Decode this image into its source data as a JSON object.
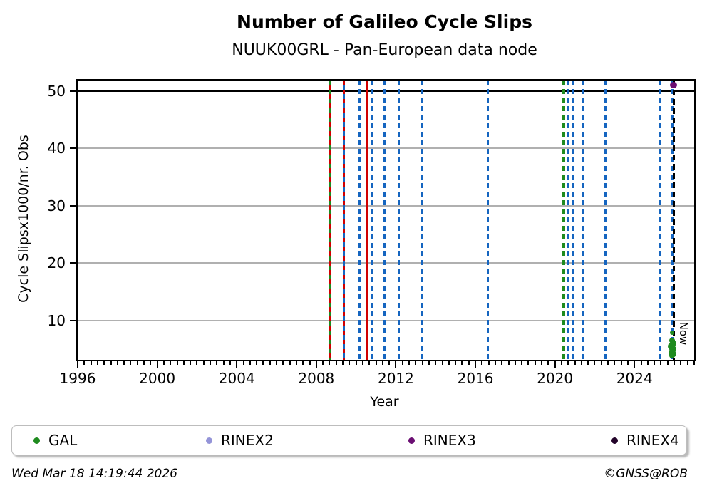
{
  "title": "Number of Galileo Cycle Slips",
  "subtitle": "NUUK00GRL - Pan-European data node",
  "footer": {
    "timestamp": "Wed Mar 18 14:19:44 2026",
    "credit": "©GNSS@ROB"
  },
  "chart_data": {
    "type": "scatter",
    "title": "Number of Galileo Cycle Slips",
    "subtitle": "NUUK00GRL - Pan-European data node",
    "xlabel": "Year",
    "ylabel": "Cycle Slipsx1000/nr. Obs",
    "xlim": [
      1996,
      2027
    ],
    "ylim": [
      3.2,
      51.8
    ],
    "xticks": [
      1996,
      2000,
      2004,
      2008,
      2012,
      2016,
      2020,
      2024
    ],
    "yticks": [
      10,
      20,
      30,
      40,
      50
    ],
    "minor_xtick_step_years": 0.3333,
    "grid": "horizontal",
    "gridline_color": "#b0b0b0",
    "hline": {
      "y": 50,
      "color": "#000000",
      "width": 2.5
    },
    "colors": {
      "green": "#1f8b1f",
      "red": "#d10000",
      "blue": "#1565c0",
      "black": "#000000",
      "rinex2": "#9494d8",
      "rinex3": "#6b0f73",
      "rinex4": "#23032a"
    },
    "vlines": [
      {
        "year": 2008.67,
        "x_frac": 0.4086,
        "color": "#1f8b1f",
        "style": "solid",
        "width": 3
      },
      {
        "year": 2008.67,
        "x_frac": 0.4086,
        "color": "#d10000",
        "style": "dashed-offset",
        "width": 3
      },
      {
        "year": 2009.4,
        "x_frac": 0.4317,
        "color": "#d10000",
        "style": "solid",
        "width": 3
      },
      {
        "year": 2009.4,
        "x_frac": 0.4317,
        "color": "#1565c0",
        "style": "dashed-offset",
        "width": 3
      },
      {
        "year": 2010.18,
        "x_frac": 0.4571,
        "color": "#1565c0",
        "style": "dashed",
        "width": 3
      },
      {
        "year": 2010.58,
        "x_frac": 0.4702,
        "color": "#d10000",
        "style": "solid",
        "width": 3
      },
      {
        "year": 2010.8,
        "x_frac": 0.4772,
        "color": "#1565c0",
        "style": "dashed",
        "width": 3
      },
      {
        "year": 2011.43,
        "x_frac": 0.4976,
        "color": "#1565c0",
        "style": "dashed",
        "width": 3
      },
      {
        "year": 2012.14,
        "x_frac": 0.5203,
        "color": "#1565c0",
        "style": "dashed",
        "width": 3
      },
      {
        "year": 2013.33,
        "x_frac": 0.5589,
        "color": "#1565c0",
        "style": "dashed",
        "width": 3
      },
      {
        "year": 2016.63,
        "x_frac": 0.6653,
        "color": "#1565c0",
        "style": "dashed",
        "width": 3
      },
      {
        "year": 2020.5,
        "x_frac": 0.7889,
        "color": "#1f8b1f",
        "style": "dashed",
        "width": 4
      },
      {
        "year": 2020.7,
        "x_frac": 0.7952,
        "color": "#1565c0",
        "style": "dashed",
        "width": 3
      },
      {
        "year": 2020.9,
        "x_frac": 0.8027,
        "color": "#1565c0",
        "style": "dashed",
        "width": 3
      },
      {
        "year": 2021.42,
        "x_frac": 0.8189,
        "color": "#1565c0",
        "style": "dashed",
        "width": 3
      },
      {
        "year": 2022.55,
        "x_frac": 0.8565,
        "color": "#1565c0",
        "style": "dashed",
        "width": 3
      },
      {
        "year": 2025.27,
        "x_frac": 0.9444,
        "color": "#1565c0",
        "style": "dashed",
        "width": 3
      },
      {
        "year": 2025.93,
        "x_frac": 0.9653,
        "color": "#1565c0",
        "style": "dashed",
        "width": 3
      }
    ],
    "now_line": {
      "label": "Now",
      "year": 2026.21,
      "x_frac": 0.967,
      "color": "#000000",
      "style": "dashed",
      "width": 3
    },
    "series": [
      {
        "name": "GAL",
        "color": "#1f8b1f",
        "points": [
          {
            "x_frac": 0.9645,
            "value": 7.9,
            "r": 3
          },
          {
            "x_frac": 0.964,
            "value": 6.5,
            "r": 4
          },
          {
            "x_frac": 0.966,
            "value": 6.0,
            "r": 4
          },
          {
            "x_frac": 0.9635,
            "value": 5.5,
            "r": 5
          },
          {
            "x_frac": 0.9655,
            "value": 5.0,
            "r": 5
          },
          {
            "x_frac": 0.9645,
            "value": 4.5,
            "r": 5
          },
          {
            "x_frac": 0.966,
            "value": 4.2,
            "r": 4
          },
          {
            "x_frac": 0.9645,
            "value": 3.9,
            "r": 4
          }
        ]
      },
      {
        "name": "RINEX3",
        "color": "#6b0f73",
        "points": [
          {
            "x_frac": 0.967,
            "value": 51.0,
            "rx": 5,
            "ry": 4.5
          }
        ]
      }
    ],
    "legend": [
      {
        "label": "GAL",
        "color": "#1f8b1f",
        "left": 30
      },
      {
        "label": "RINEX2",
        "color": "#9494d8",
        "left": 272
      },
      {
        "label": "RINEX3",
        "color": "#6b0f73",
        "left": 556
      },
      {
        "label": "RINEX4",
        "color": "#23032a",
        "left": 841
      }
    ],
    "legend_position": "bottom"
  }
}
